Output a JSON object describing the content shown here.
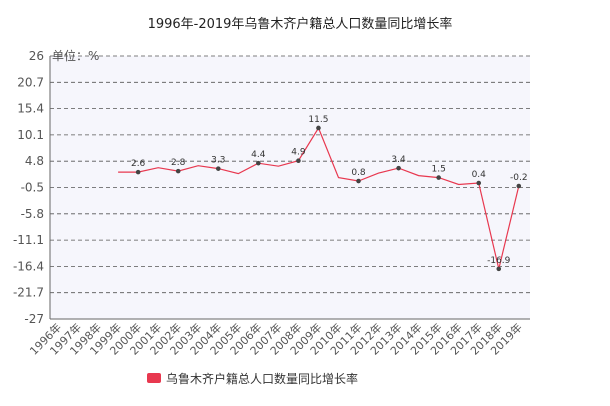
{
  "chart_data": {
    "type": "line",
    "title": "1996年-2019年乌鲁木齐户籍总人口数量同比增长率",
    "unit_label": "单位：%",
    "yticks": [
      26,
      20.7,
      15.4,
      10.1,
      4.8,
      -0.5,
      -5.8,
      -11.1,
      -16.4,
      -21.7,
      -27
    ],
    "ylim": [
      -27,
      26
    ],
    "categories": [
      "1996年",
      "1997年",
      "1998年",
      "1999年",
      "2000年",
      "2001年",
      "2002年",
      "2003年",
      "2004年",
      "2005年",
      "2006年",
      "2007年",
      "2008年",
      "2009年",
      "2010年",
      "2011年",
      "2012年",
      "2013年",
      "2014年",
      "2015年",
      "2016年",
      "2017年",
      "2018年",
      "2019年"
    ],
    "series": [
      {
        "name": "乌鲁木齐户籍总人口数量同比增长率",
        "color": "#e8384f",
        "values": [
          null,
          null,
          null,
          2.6,
          2.6,
          3.5,
          2.8,
          3.9,
          3.3,
          2.3,
          4.4,
          3.8,
          4.9,
          11.5,
          1.5,
          0.8,
          2.4,
          3.4,
          1.9,
          1.5,
          0.1,
          0.4,
          -16.9,
          -0.2
        ]
      }
    ],
    "labeled_points": [
      {
        "index": 4,
        "label": "2.6"
      },
      {
        "index": 6,
        "label": "2.8"
      },
      {
        "index": 8,
        "label": "3.3"
      },
      {
        "index": 10,
        "label": "4.4"
      },
      {
        "index": 12,
        "label": "4.9"
      },
      {
        "index": 13,
        "label": "11.5"
      },
      {
        "index": 15,
        "label": "0.8"
      },
      {
        "index": 17,
        "label": "3.4"
      },
      {
        "index": 19,
        "label": "1.5"
      },
      {
        "index": 21,
        "label": "0.4"
      },
      {
        "index": 22,
        "label": "-16.9"
      },
      {
        "index": 23,
        "label": "-0.2"
      }
    ],
    "grid": true,
    "legend_position": "bottom"
  }
}
